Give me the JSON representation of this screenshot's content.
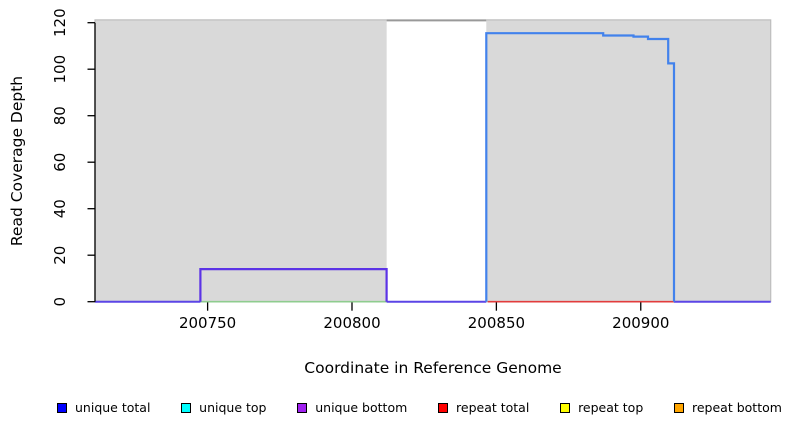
{
  "figure": {
    "xlabel": "Coordinate in Reference Genome",
    "ylabel": "Read Coverage Depth"
  },
  "chart_data": {
    "type": "line",
    "title": "",
    "xlabel": "Coordinate in Reference Genome",
    "ylabel": "Read Coverage Depth",
    "x_range": [
      200711,
      200945
    ],
    "y_range": [
      0,
      120
    ],
    "x_ticks": [
      200750,
      200800,
      200850,
      200900
    ],
    "y_ticks": [
      0,
      20,
      40,
      60,
      80,
      100,
      120
    ],
    "grid": false,
    "legend_position": "bottom",
    "plot_background": "#d9d9d9",
    "plot_border": "#bdbdbd",
    "no_data_region": {
      "x_start": 200812,
      "x_end": 200846.5,
      "fill": "#ffffff"
    },
    "series_legend": [
      {
        "label": "unique total",
        "color": "#0000ff"
      },
      {
        "label": "unique top",
        "color": "#00ffff"
      },
      {
        "label": "unique bottom",
        "color": "#a020f0"
      },
      {
        "label": "repeat total",
        "color": "#ff0000"
      },
      {
        "label": "repeat top",
        "color": "#ffff00"
      },
      {
        "label": "repeat bottom",
        "color": "#ffa500"
      }
    ],
    "segments": [
      {
        "name": "baseline-left",
        "color": "#5b45e6",
        "width": 2,
        "points": [
          [
            200711,
            0
          ],
          [
            200747.5,
            0
          ]
        ]
      },
      {
        "name": "baseline-gap",
        "color": "#5b45e6",
        "width": 2,
        "points": [
          [
            200812,
            0
          ],
          [
            200846.5,
            0
          ]
        ]
      },
      {
        "name": "baseline-right",
        "color": "#5b45e6",
        "width": 2,
        "points": [
          [
            200911.5,
            0
          ],
          [
            200945,
            0
          ]
        ]
      },
      {
        "name": "green-baseline",
        "color": "#8fcc8f",
        "width": 1.6,
        "points": [
          [
            200747.5,
            0
          ],
          [
            200812,
            0
          ]
        ]
      },
      {
        "name": "repeat-total-baseline",
        "color": "#e23c3c",
        "width": 1.6,
        "points": [
          [
            200847,
            0
          ],
          [
            200911.5,
            0
          ]
        ]
      },
      {
        "name": "clipped-top-line",
        "color": "#999999",
        "width": 2,
        "points": [
          [
            200812,
            121
          ],
          [
            200846.5,
            121
          ]
        ]
      },
      {
        "name": "unique-bottom-box",
        "color": "#5c33e6",
        "width": 2.2,
        "points": [
          [
            200747.5,
            0
          ],
          [
            200747.5,
            14
          ],
          [
            200812,
            14
          ],
          [
            200812,
            0
          ]
        ]
      },
      {
        "name": "unique-total-step",
        "color": "#4282ec",
        "width": 2.2,
        "points": [
          [
            200846.5,
            0
          ],
          [
            200846.5,
            115.5
          ],
          [
            200887,
            115.5
          ],
          [
            200887,
            114.5
          ],
          [
            200897.5,
            114.5
          ],
          [
            200897.5,
            114
          ],
          [
            200902.5,
            114
          ],
          [
            200902.5,
            113
          ],
          [
            200909.5,
            113
          ],
          [
            200909.5,
            102.5
          ],
          [
            200911.5,
            102.5
          ],
          [
            200911.5,
            0
          ]
        ]
      }
    ]
  }
}
